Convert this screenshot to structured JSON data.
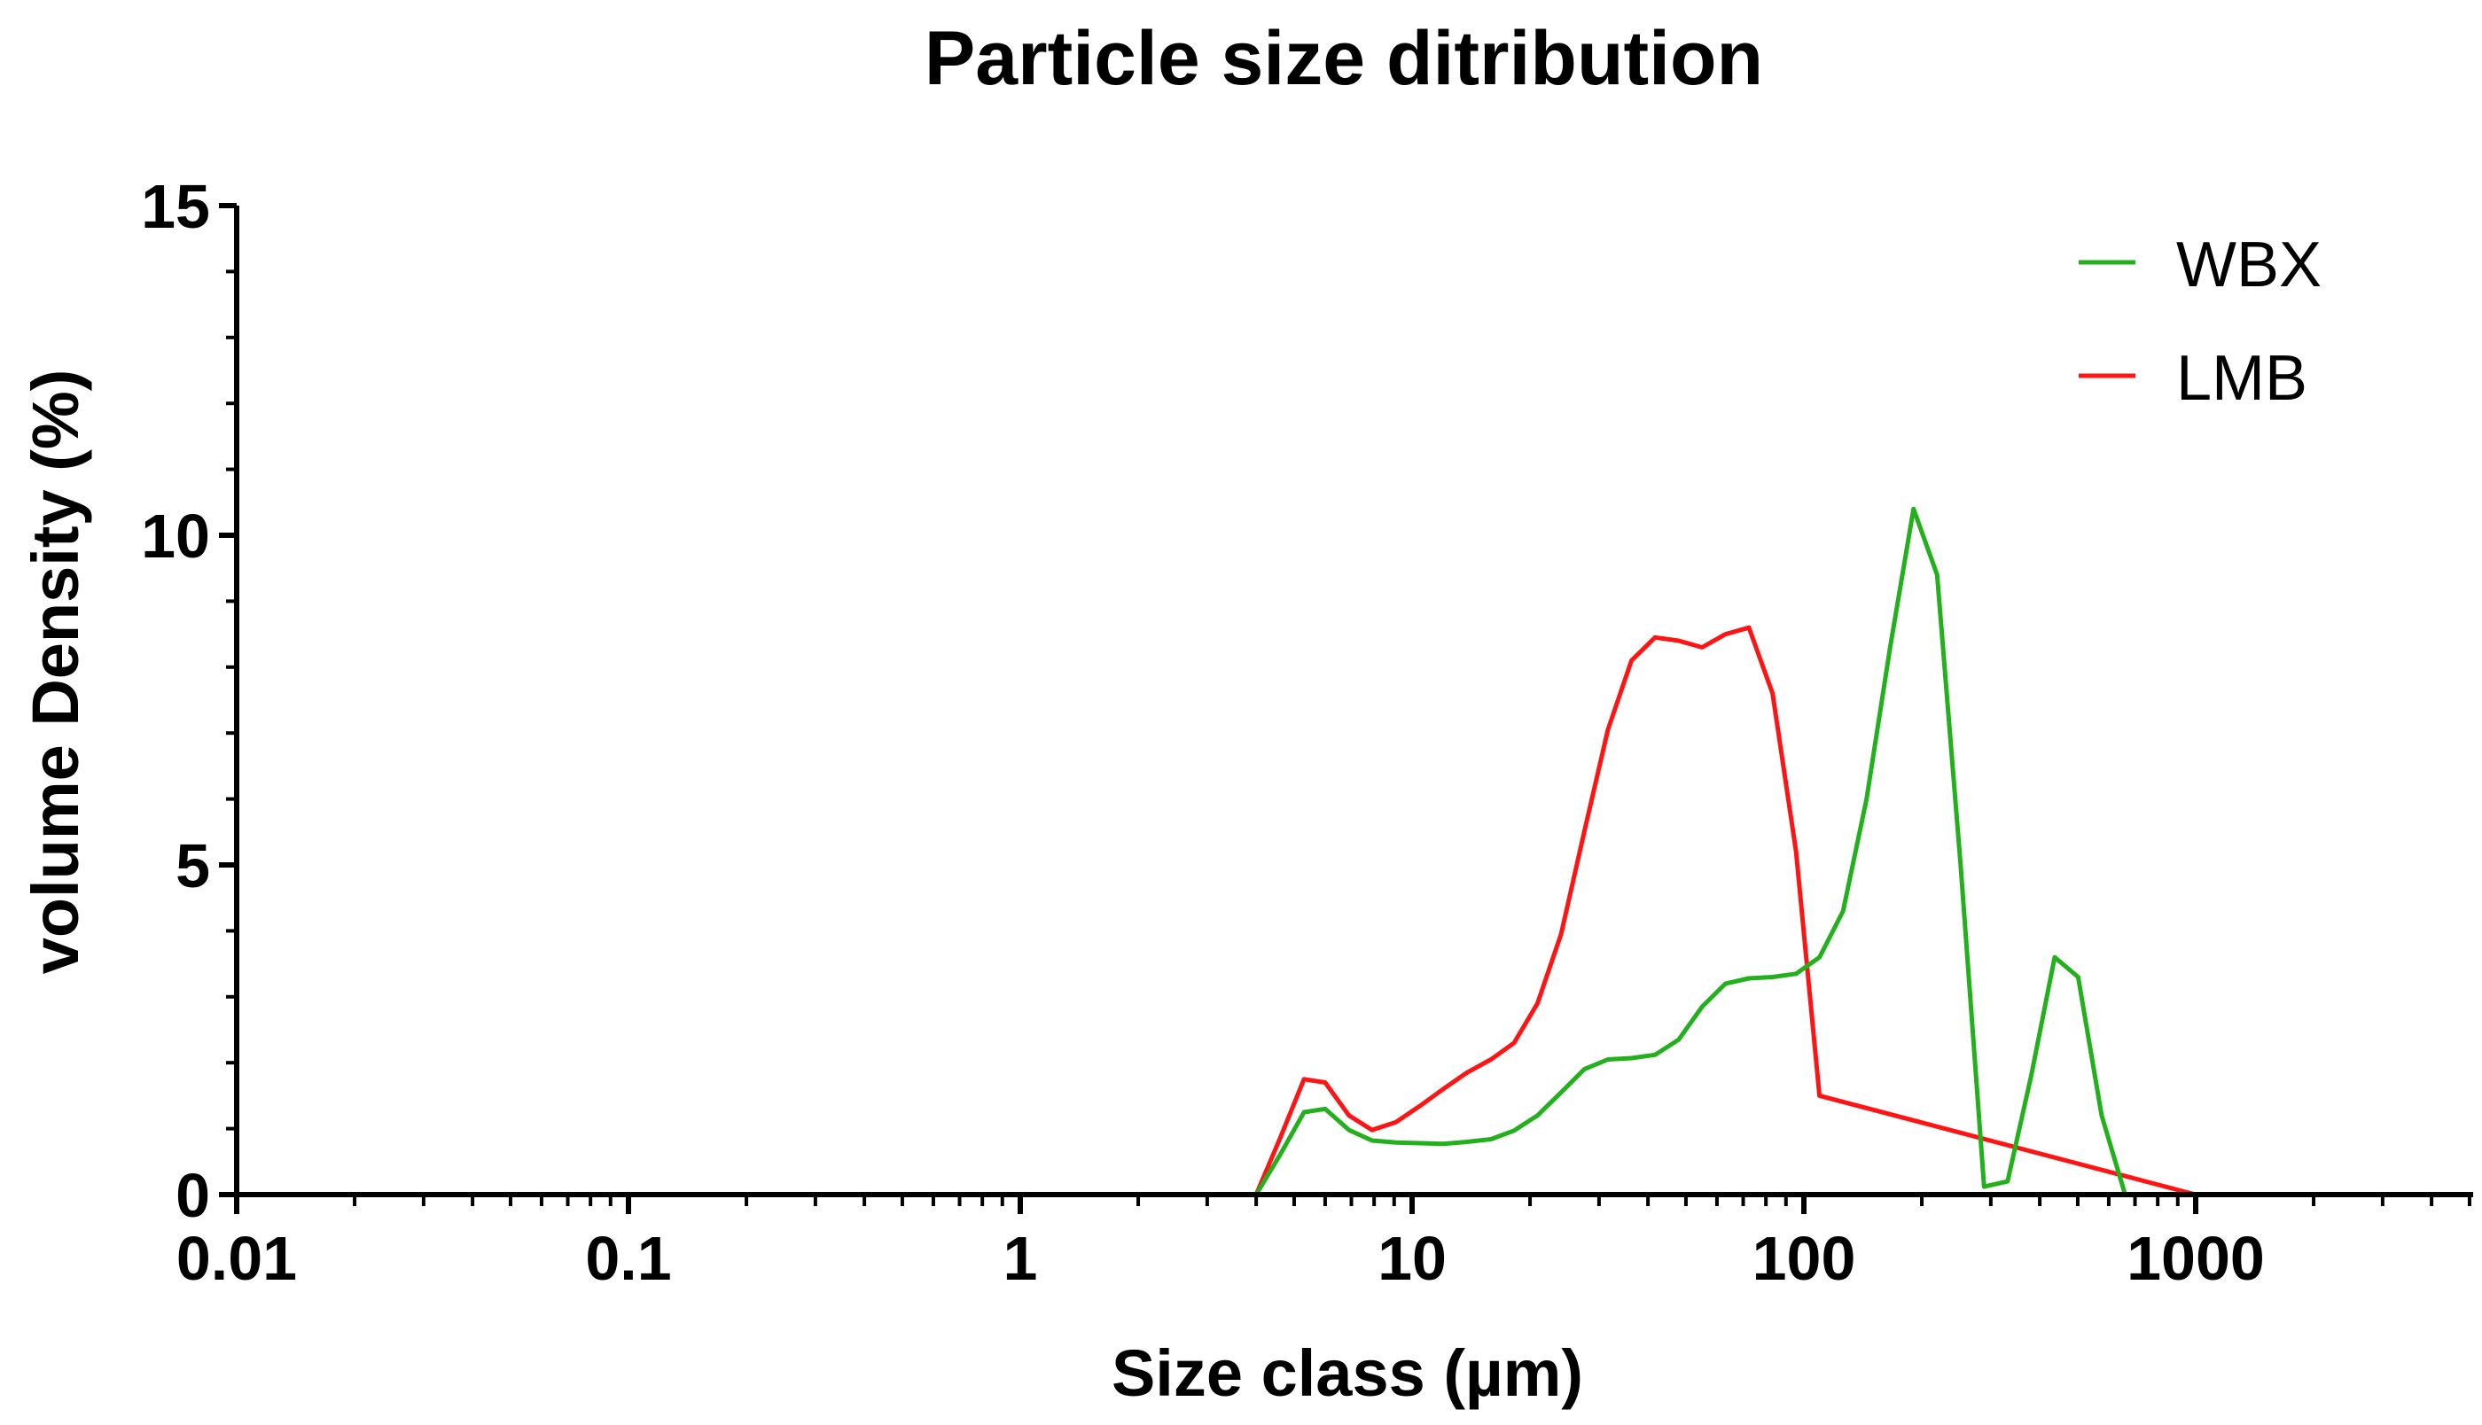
{
  "chart_data": {
    "type": "line",
    "title": "Particle size ditribution",
    "xlabel": "Size class (µm)",
    "ylabel": "volume Density (%)",
    "xscale": "log",
    "xlim": [
      0.01,
      5000
    ],
    "ylim": [
      0,
      15
    ],
    "xticks": [
      0.01,
      0.1,
      1,
      10,
      100,
      1000
    ],
    "xtick_labels": [
      "0.01",
      "0.1",
      "1",
      "10",
      "100",
      "1000"
    ],
    "yticks": [
      0,
      5,
      10,
      15
    ],
    "ytick_labels": [
      "0",
      "5",
      "10",
      "15"
    ],
    "legend_position": "top-right",
    "series": [
      {
        "name": "WBX",
        "color": "#22b01c",
        "x": [
          0.01,
          0.1,
          1,
          4.0,
          4.6,
          5.3,
          6.0,
          6.9,
          7.9,
          9.1,
          10.5,
          12.0,
          13.8,
          15.9,
          18.2,
          20.9,
          24.0,
          27.5,
          31.6,
          36.3,
          41.7,
          47.9,
          55.0,
          63.1,
          72.4,
          83.2,
          95.5,
          109.6,
          125.9,
          144.5,
          166.0,
          190.5,
          218.8,
          251.2,
          288.4,
          331.1,
          380.2,
          436.5,
          501.2,
          575.4,
          660.7,
          1000,
          3000
        ],
        "y": [
          0,
          0,
          0,
          0,
          0.6,
          1.25,
          1.3,
          0.98,
          0.82,
          0.79,
          0.78,
          0.77,
          0.8,
          0.84,
          0.97,
          1.2,
          1.55,
          1.9,
          2.05,
          2.07,
          2.12,
          2.35,
          2.85,
          3.2,
          3.28,
          3.3,
          3.35,
          3.6,
          4.3,
          6.0,
          8.3,
          10.4,
          9.4,
          5.0,
          0.12,
          0.2,
          1.8,
          3.6,
          3.3,
          1.2,
          0,
          0,
          0
        ]
      },
      {
        "name": "LMB",
        "color": "#ff1414",
        "x": [
          0.01,
          0.1,
          1,
          4.0,
          4.6,
          5.3,
          6.0,
          6.9,
          7.9,
          9.1,
          10.5,
          12.0,
          13.8,
          15.9,
          18.2,
          20.9,
          24.0,
          27.5,
          31.6,
          36.3,
          41.7,
          47.9,
          55.0,
          63.1,
          72.4,
          83.2,
          95.5,
          109.6,
          1000,
          3000
        ],
        "y": [
          0,
          0,
          0,
          0,
          0.85,
          1.75,
          1.7,
          1.2,
          0.98,
          1.1,
          1.35,
          1.6,
          1.85,
          2.05,
          2.3,
          2.9,
          3.95,
          5.5,
          7.05,
          8.1,
          8.45,
          8.4,
          8.3,
          8.5,
          8.6,
          7.6,
          5.2,
          1.5,
          0,
          0
        ]
      }
    ]
  }
}
